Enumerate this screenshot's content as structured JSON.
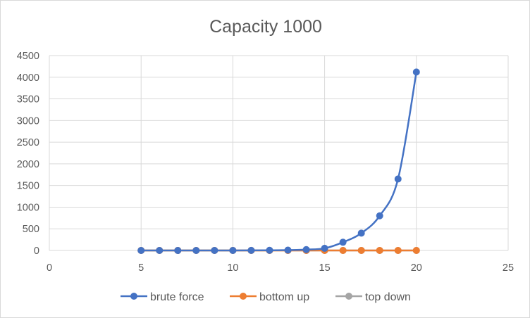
{
  "chart_data": {
    "type": "line",
    "title": "Capacity 1000",
    "xlabel": "",
    "ylabel": "",
    "xlim": [
      0,
      25
    ],
    "ylim": [
      0,
      4500
    ],
    "xticks": [
      0,
      5,
      10,
      15,
      20,
      25
    ],
    "yticks": [
      0,
      500,
      1000,
      1500,
      2000,
      2500,
      3000,
      3500,
      4000,
      4500
    ],
    "grid": true,
    "legend_position": "bottom",
    "x": [
      5,
      6,
      7,
      8,
      9,
      10,
      11,
      12,
      13,
      14,
      15,
      16,
      17,
      18,
      19,
      20
    ],
    "series": [
      {
        "name": "brute force",
        "color": "#4472c4",
        "values": [
          0,
          0,
          0,
          0,
          1,
          1,
          2,
          4,
          8,
          20,
          50,
          190,
          400,
          800,
          1650,
          4120
        ]
      },
      {
        "name": "bottom up",
        "color": "#ed7d31",
        "values": [
          1,
          1,
          1,
          1,
          1,
          1,
          1,
          1,
          1,
          1,
          1,
          1,
          1,
          1,
          1,
          1
        ]
      },
      {
        "name": "top down",
        "color": "#a5a5a5",
        "values": [
          0,
          0,
          0,
          0,
          0,
          0,
          0,
          0,
          0,
          0,
          0,
          0,
          0,
          0,
          0,
          0
        ]
      }
    ]
  }
}
